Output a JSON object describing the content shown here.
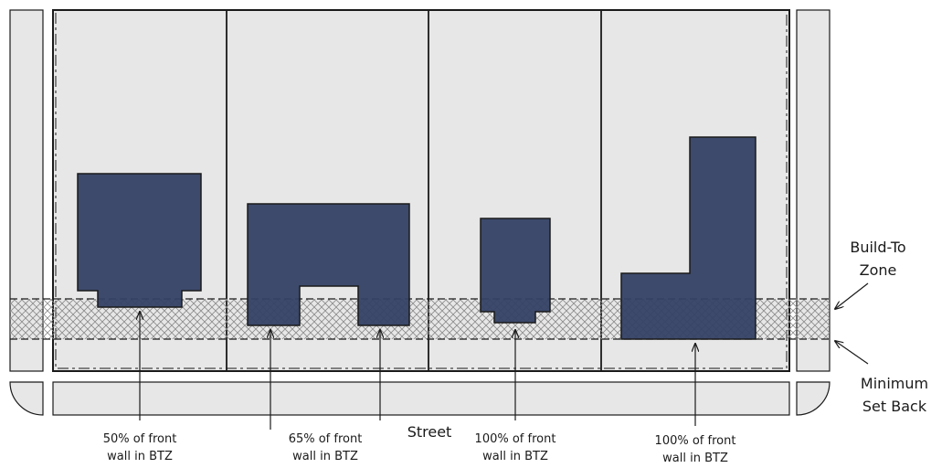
{
  "colors": {
    "lot_fill": "#e7e7e7",
    "building_fill": "#344165",
    "line": "#1a1a1a",
    "hatch": "#8a8a8a"
  },
  "labels": {
    "street": "Street",
    "btz_line1": "Build-To",
    "btz_line2": "Zone",
    "setback_line1": "Minimum",
    "setback_line2": "Set Back"
  },
  "lots": [
    {
      "caption_line1": "50% of front",
      "caption_line2": "wall in BTZ"
    },
    {
      "caption_line1": "65% of front",
      "caption_line2": "wall in BTZ"
    },
    {
      "caption_line1": "100% of front",
      "caption_line2": "wall in BTZ"
    },
    {
      "caption_line1": "100% of front",
      "caption_line2": "wall in BTZ"
    }
  ]
}
